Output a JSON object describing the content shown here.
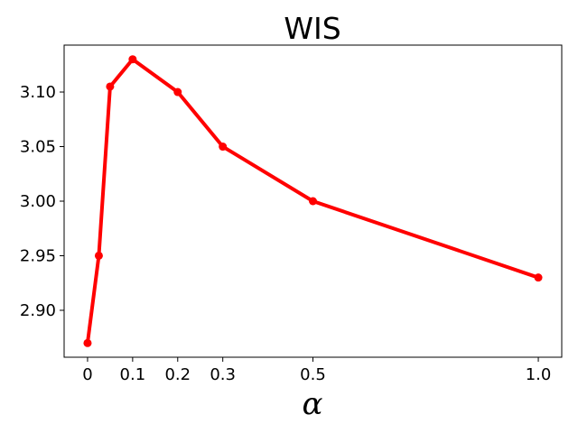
{
  "chart_data": {
    "type": "line",
    "title": "WIS",
    "xlabel": "α",
    "ylabel": "",
    "x": [
      0,
      0.025,
      0.05,
      0.1,
      0.2,
      0.3,
      0.5,
      1.0
    ],
    "series": [
      {
        "values": [
          2.87,
          2.95,
          3.105,
          3.13,
          3.1,
          3.05,
          3.0,
          2.93
        ],
        "color": "#ff0000"
      }
    ],
    "xticks": [
      0,
      0.1,
      0.2,
      0.3,
      0.5,
      1.0
    ],
    "xtick_labels": [
      "0",
      "0.1",
      "0.2",
      "0.3",
      "0.5",
      "1.0"
    ],
    "yticks": [
      2.9,
      2.95,
      3.0,
      3.05,
      3.1
    ],
    "ytick_labels": [
      "2.90",
      "2.95",
      "3.00",
      "3.05",
      "3.10"
    ],
    "xlim": [
      -0.052,
      1.052
    ],
    "ylim": [
      2.857,
      3.143
    ],
    "grid": false,
    "legend": false
  }
}
